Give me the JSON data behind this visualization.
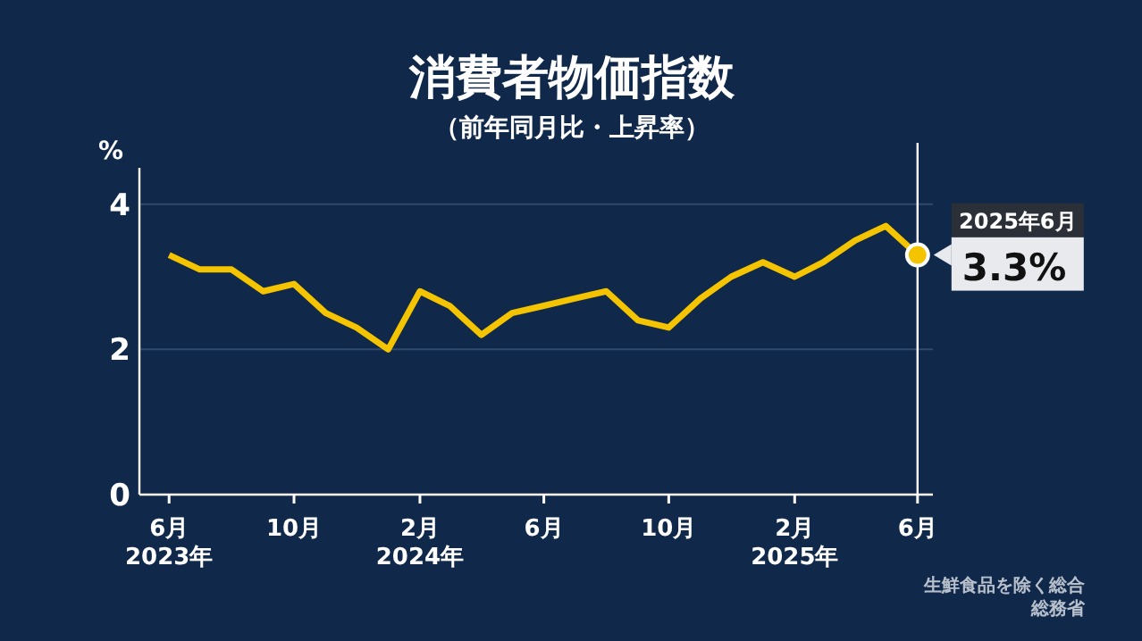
{
  "chart_data": {
    "type": "line",
    "title": "消費者物価指数",
    "subtitle": "（前年同月比・上昇率）",
    "ylabel": "%",
    "x": [
      "2023-06",
      "2023-07",
      "2023-08",
      "2023-09",
      "2023-10",
      "2023-11",
      "2023-12",
      "2024-01",
      "2024-02",
      "2024-03",
      "2024-04",
      "2024-05",
      "2024-06",
      "2024-07",
      "2024-08",
      "2024-09",
      "2024-10",
      "2024-11",
      "2024-12",
      "2025-01",
      "2025-02",
      "2025-03",
      "2025-04",
      "2025-05",
      "2025-06"
    ],
    "series": [
      {
        "color": "#f5c400",
        "values": [
          3.3,
          3.1,
          3.1,
          2.8,
          2.9,
          2.5,
          2.3,
          2.0,
          2.8,
          2.6,
          2.2,
          2.5,
          2.6,
          2.7,
          2.8,
          2.4,
          2.3,
          2.7,
          3.0,
          3.2,
          3.0,
          3.2,
          3.5,
          3.7,
          3.3
        ],
        "value_labels": [
          null,
          null,
          null,
          null,
          null,
          null,
          null,
          null,
          null,
          null,
          null,
          null,
          null,
          null,
          null,
          null,
          null,
          null,
          null,
          null,
          null,
          null,
          null,
          null,
          "3.3%"
        ]
      }
    ],
    "xlim": [
      "2023-05-03",
      "2025-06-16"
    ],
    "ylim": [
      0,
      4.5
    ],
    "yticks": [
      0,
      2,
      4
    ],
    "xticks": [
      {
        "value": "2023-06",
        "label": "6月\n2023年"
      },
      {
        "value": "2023-10",
        "label": "10月"
      },
      {
        "value": "2024-02",
        "label": "2月\n2024年"
      },
      {
        "value": "2024-06",
        "label": "6月"
      },
      {
        "value": "2024-10",
        "label": "10月"
      },
      {
        "value": "2025-02",
        "label": "2月\n2025年"
      },
      {
        "value": "2025-06",
        "label": "6月"
      }
    ],
    "grid": "y",
    "marker": "none",
    "line_style": "solid",
    "ref_lines": [
      {
        "axis": "x",
        "value": "2025-06",
        "color": "#ffffff"
      }
    ],
    "annotations": [
      {
        "text": "2025年6月",
        "x": "2025-06",
        "y": 3.3
      },
      "生鮮食品を除く総合",
      "総務省"
    ]
  }
}
